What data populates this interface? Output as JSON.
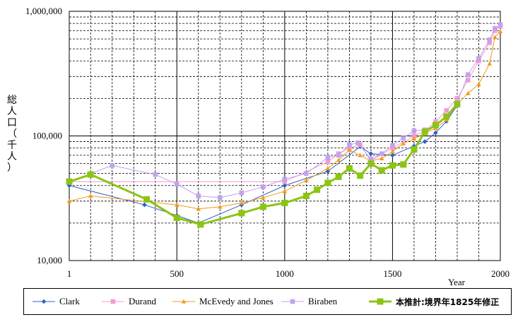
{
  "chart_data": {
    "type": "line",
    "title": "",
    "xlabel": "Year",
    "ylabel": "総人口（千人）",
    "xlim": [
      1,
      2000
    ],
    "ylim": [
      10000,
      1000000
    ],
    "yscale": "log",
    "x_ticks": [
      {
        "value": 1,
        "label": "1"
      },
      {
        "value": 500,
        "label": "500"
      },
      {
        "value": 1000,
        "label": "1000"
      },
      {
        "value": 1500,
        "label": "1500"
      },
      {
        "value": 2000,
        "label": "2000"
      }
    ],
    "y_ticks": [
      {
        "value": 10000,
        "label": "10,000"
      },
      {
        "value": 100000,
        "label": "100,000"
      },
      {
        "value": 1000000,
        "label": "1,000,000"
      }
    ],
    "grid": true,
    "legend": "bottom",
    "series": [
      {
        "name": "Clark",
        "color": "#2f5fc8",
        "marker": "diamond",
        "width": 1,
        "x": [
          1,
          350,
          500,
          600,
          800,
          1000,
          1200,
          1350,
          1400,
          1500,
          1600,
          1650,
          1700,
          1750,
          1800
        ],
        "y": [
          40000,
          28000,
          23000,
          20000,
          28000,
          40000,
          52000,
          82000,
          72000,
          70000,
          83000,
          90000,
          106000,
          131000,
          176000
        ]
      },
      {
        "name": "Durand",
        "color": "#f59ad0",
        "marker": "square",
        "width": 1,
        "x": [
          1,
          1000,
          1200,
          1250,
          1300,
          1350,
          1400,
          1500,
          1600,
          1650,
          1700,
          1750,
          1800,
          1850,
          1900,
          1950,
          1975,
          2000
        ],
        "y": [
          43000,
          43000,
          62000,
          72000,
          80000,
          85000,
          63000,
          80000,
          100000,
          110000,
          130000,
          160000,
          200000,
          280000,
          400000,
          560000,
          700000,
          760000
        ]
      },
      {
        "name": "McEvedy and Jones",
        "color": "#f39a1a",
        "marker": "triangle",
        "width": 1,
        "x": [
          1,
          100,
          500,
          600,
          700,
          800,
          900,
          1000,
          1100,
          1200,
          1250,
          1300,
          1350,
          1400,
          1450,
          1500,
          1550,
          1600,
          1650,
          1700,
          1750,
          1800,
          1850,
          1900,
          1950,
          1975,
          2000
        ],
        "y": [
          30000,
          33000,
          28000,
          26000,
          27000,
          29000,
          32000,
          36000,
          44000,
          55000,
          64000,
          77000,
          70000,
          63000,
          66000,
          75000,
          87000,
          95000,
          105000,
          115000,
          135000,
          180000,
          220000,
          260000,
          380000,
          620000,
          690000
        ]
      },
      {
        "name": "Biraben",
        "color": "#c2a2ee",
        "marker": "square",
        "width": 1,
        "x": [
          1,
          200,
          400,
          500,
          600,
          700,
          800,
          900,
          1000,
          1100,
          1200,
          1250,
          1300,
          1340,
          1400,
          1450,
          1500,
          1550,
          1600,
          1650,
          1700,
          1750,
          1800,
          1850,
          1900,
          1950,
          1975,
          2000
        ],
        "y": [
          43000,
          58000,
          49000,
          41000,
          33000,
          32000,
          35000,
          39000,
          45000,
          50000,
          67000,
          70000,
          85000,
          88000,
          65000,
          72000,
          84000,
          96000,
          110000,
          112000,
          120000,
          145000,
          185000,
          310000,
          420000,
          590000,
          730000,
          780000
        ]
      },
      {
        "name": "本推計:境界年1825年修正",
        "color": "#8cc414",
        "marker": "square",
        "width": 3,
        "x": [
          1,
          100,
          360,
          500,
          610,
          800,
          900,
          1000,
          1100,
          1150,
          1200,
          1250,
          1300,
          1350,
          1400,
          1450,
          1500,
          1550,
          1600,
          1650,
          1700,
          1750,
          1800
        ],
        "y": [
          43000,
          49000,
          31000,
          22000,
          19500,
          24000,
          27000,
          29000,
          33000,
          37000,
          42000,
          47000,
          55000,
          48000,
          60000,
          53000,
          58000,
          59000,
          78000,
          108000,
          122000,
          143000,
          180000
        ]
      }
    ]
  }
}
